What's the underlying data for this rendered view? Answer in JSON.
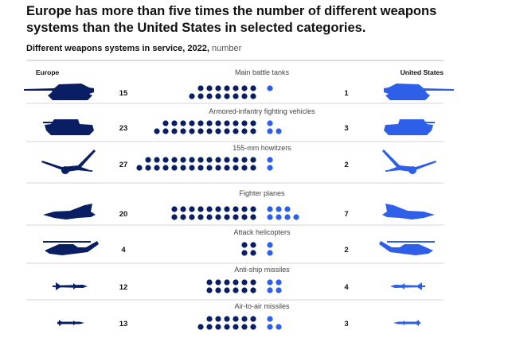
{
  "title": "Europe has more than five times the number of different weapons systems than the United States in selected categories.",
  "subtitle_bold": "Different weapons systems in service, 2022,",
  "subtitle_unit": "number",
  "colors": {
    "europe": "#0a1f63",
    "us": "#2e5fe8",
    "divider": "#d6d6d6"
  },
  "chart_data": {
    "type": "dot-matrix",
    "left_header": "Europe",
    "right_header": "United States",
    "categories": [
      "Main battle tanks",
      "Armored-infantry fighting vehicles",
      "155-mm howitzers",
      "Fighter planes",
      "Attack helicopters",
      "Anti-ship missiles",
      "Air-to-air missiles"
    ],
    "series": [
      {
        "name": "Europe",
        "values": [
          15,
          23,
          27,
          20,
          4,
          12,
          13
        ]
      },
      {
        "name": "United States",
        "values": [
          1,
          3,
          2,
          7,
          2,
          4,
          3
        ]
      }
    ],
    "icons": [
      "tank-icon",
      "ifv-icon",
      "howitzer-icon",
      "fighter-jet-icon",
      "helicopter-icon",
      "anti-ship-missile-icon",
      "air-to-air-missile-icon"
    ]
  }
}
